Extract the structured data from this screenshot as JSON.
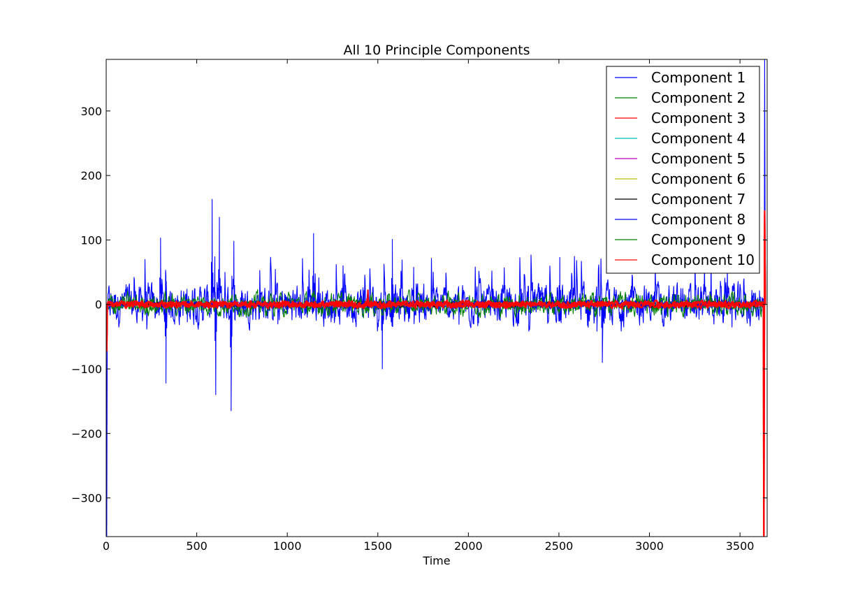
{
  "chart_data": {
    "type": "line",
    "title": "All 10 Principle Components",
    "xlabel": "Time",
    "ylabel": "",
    "xlim": [
      0,
      3650
    ],
    "ylim": [
      -360,
      380
    ],
    "x_ticks": [
      0,
      500,
      1000,
      1500,
      2000,
      2500,
      3000,
      3500
    ],
    "x_tick_labels": [
      "0",
      "500",
      "1000",
      "1500",
      "2000",
      "2500",
      "3000",
      "3500"
    ],
    "y_ticks": [
      -300,
      -200,
      -100,
      0,
      100,
      200,
      300
    ],
    "y_tick_labels": [
      "−300",
      "−200",
      "−100",
      "0",
      "100",
      "200",
      "300"
    ],
    "grid": false,
    "legend_position": "top-right",
    "series": [
      {
        "name": "Component 1",
        "color": "#0000ff",
        "amplitude": 40,
        "peaks": [
          [
            300,
            103
          ],
          [
            330,
            -122
          ],
          [
            585,
            163
          ],
          [
            605,
            -140
          ],
          [
            625,
            135
          ],
          [
            690,
            -165
          ],
          [
            705,
            98
          ],
          [
            1145,
            110
          ],
          [
            1525,
            -100
          ],
          [
            1580,
            101
          ],
          [
            2505,
            73
          ],
          [
            2740,
            -90
          ]
        ],
        "ends": [
          -360,
          380
        ]
      },
      {
        "name": "Component 2",
        "color": "#008000",
        "amplitude": 14,
        "peaks": [],
        "ends": [
          -20,
          20
        ]
      },
      {
        "name": "Component 3",
        "color": "#ff0000",
        "amplitude": 4,
        "peaks": [
          [
            1445,
            22
          ]
        ],
        "ends": [
          -360,
          145
        ]
      },
      {
        "name": "Component 4",
        "color": "#00bfbf",
        "amplitude": 3,
        "peaks": [],
        "ends": [
          -104,
          10
        ]
      },
      {
        "name": "Component 5",
        "color": "#bf00bf",
        "amplitude": 3,
        "peaks": [],
        "ends": [
          -90,
          20
        ]
      },
      {
        "name": "Component 6",
        "color": "#bfbf00",
        "amplitude": 3,
        "peaks": [],
        "ends": [
          -30,
          15
        ]
      },
      {
        "name": "Component 7",
        "color": "#000000",
        "amplitude": 3,
        "peaks": [],
        "ends": [
          -30,
          15
        ]
      },
      {
        "name": "Component 8",
        "color": "#0000ff",
        "amplitude": 5,
        "peaks": [],
        "ends": [
          -40,
          30
        ]
      },
      {
        "name": "Component 9",
        "color": "#008000",
        "amplitude": 6,
        "peaks": [],
        "ends": [
          -30,
          20
        ]
      },
      {
        "name": "Component 10",
        "color": "#ff0000",
        "amplitude": 4,
        "peaks": [],
        "ends": [
          -360,
          140
        ]
      }
    ]
  }
}
